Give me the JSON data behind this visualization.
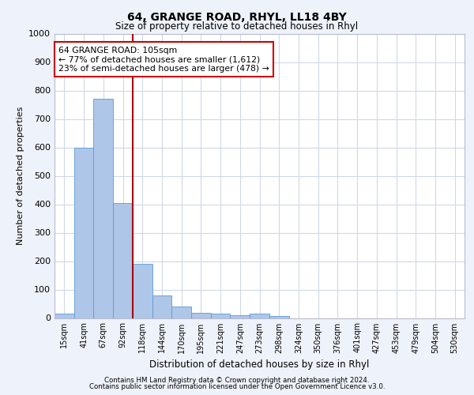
{
  "title1": "64, GRANGE ROAD, RHYL, LL18 4BY",
  "title2": "Size of property relative to detached houses in Rhyl",
  "xlabel": "Distribution of detached houses by size in Rhyl",
  "ylabel": "Number of detached properties",
  "categories": [
    "15sqm",
    "41sqm",
    "67sqm",
    "92sqm",
    "118sqm",
    "144sqm",
    "170sqm",
    "195sqm",
    "221sqm",
    "247sqm",
    "273sqm",
    "298sqm",
    "324sqm",
    "350sqm",
    "376sqm",
    "401sqm",
    "427sqm",
    "453sqm",
    "479sqm",
    "504sqm",
    "530sqm"
  ],
  "values": [
    15,
    600,
    770,
    405,
    190,
    78,
    40,
    18,
    16,
    10,
    15,
    8,
    0,
    0,
    0,
    0,
    0,
    0,
    0,
    0,
    0
  ],
  "bar_color": "#aec6e8",
  "bar_edge_color": "#5b9bd5",
  "vline_color": "#aa0000",
  "annotation_text": "64 GRANGE ROAD: 105sqm\n← 77% of detached houses are smaller (1,612)\n23% of semi-detached houses are larger (478) →",
  "annotation_box_color": "#cc0000",
  "ylim": [
    0,
    1000
  ],
  "yticks": [
    0,
    100,
    200,
    300,
    400,
    500,
    600,
    700,
    800,
    900,
    1000
  ],
  "footer1": "Contains HM Land Registry data © Crown copyright and database right 2024.",
  "footer2": "Contains public sector information licensed under the Open Government Licence v3.0.",
  "bg_color": "#eef2fa",
  "plot_bg_color": "#ffffff",
  "grid_color": "#d0d8e8"
}
